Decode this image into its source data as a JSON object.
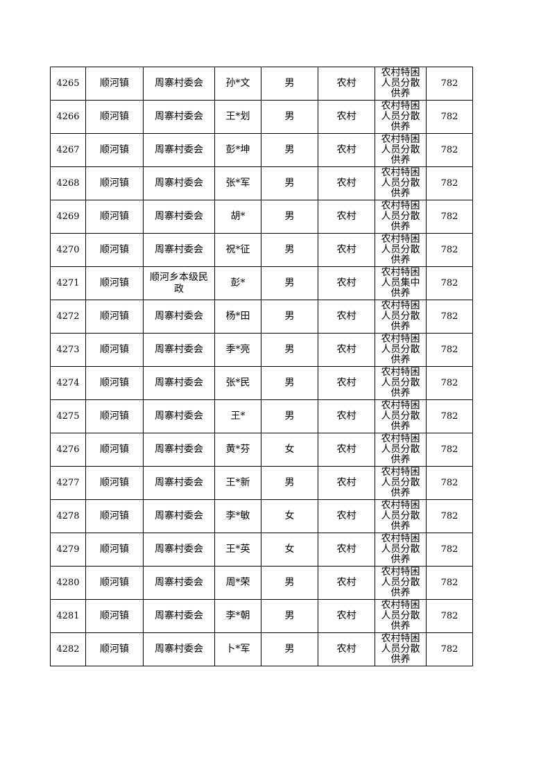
{
  "table": {
    "rows": [
      [
        "4265",
        "顺河镇",
        "周寨村委会",
        "孙*文",
        "男",
        "农村",
        "农村特困人员分散供养",
        "782"
      ],
      [
        "4266",
        "顺河镇",
        "周寨村委会",
        "王*划",
        "男",
        "农村",
        "农村特困人员分散供养",
        "782"
      ],
      [
        "4267",
        "顺河镇",
        "周寨村委会",
        "彭*坤",
        "男",
        "农村",
        "农村特困人员分散供养",
        "782"
      ],
      [
        "4268",
        "顺河镇",
        "周寨村委会",
        "张*军",
        "男",
        "农村",
        "农村特困人员分散供养",
        "782"
      ],
      [
        "4269",
        "顺河镇",
        "周寨村委会",
        "胡*",
        "男",
        "农村",
        "农村特困人员分散供养",
        "782"
      ],
      [
        "4270",
        "顺河镇",
        "周寨村委会",
        "祝*征",
        "男",
        "农村",
        "农村特困人员分散供养",
        "782"
      ],
      [
        "4271",
        "顺河镇",
        "顺河乡本级民政",
        "彭*",
        "男",
        "农村",
        "农村特困人员集中供养",
        "782"
      ],
      [
        "4272",
        "顺河镇",
        "周寨村委会",
        "杨*田",
        "男",
        "农村",
        "农村特困人员分散供养",
        "782"
      ],
      [
        "4273",
        "顺河镇",
        "周寨村委会",
        "季*亮",
        "男",
        "农村",
        "农村特困人员分散供养",
        "782"
      ],
      [
        "4274",
        "顺河镇",
        "周寨村委会",
        "张*民",
        "男",
        "农村",
        "农村特困人员分散供养",
        "782"
      ],
      [
        "4275",
        "顺河镇",
        "周寨村委会",
        "王*",
        "男",
        "农村",
        "农村特困人员分散供养",
        "782"
      ],
      [
        "4276",
        "顺河镇",
        "周寨村委会",
        "黄*芬",
        "女",
        "农村",
        "农村特困人员分散供养",
        "782"
      ],
      [
        "4277",
        "顺河镇",
        "周寨村委会",
        "王*新",
        "男",
        "农村",
        "农村特困人员分散供养",
        "782"
      ],
      [
        "4278",
        "顺河镇",
        "周寨村委会",
        "李*敏",
        "女",
        "农村",
        "农村特困人员分散供养",
        "782"
      ],
      [
        "4279",
        "顺河镇",
        "周寨村委会",
        "王*英",
        "女",
        "农村",
        "农村特困人员分散供养",
        "782"
      ],
      [
        "4280",
        "顺河镇",
        "周寨村委会",
        "周*荣",
        "男",
        "农村",
        "农村特困人员分散供养",
        "782"
      ],
      [
        "4281",
        "顺河镇",
        "周寨村委会",
        "李*朝",
        "男",
        "农村",
        "农村特困人员分散供养",
        "782"
      ],
      [
        "4282",
        "顺河镇",
        "周寨村委会",
        "卜*军",
        "男",
        "农村",
        "农村特困人员分散供养",
        "782"
      ]
    ]
  }
}
